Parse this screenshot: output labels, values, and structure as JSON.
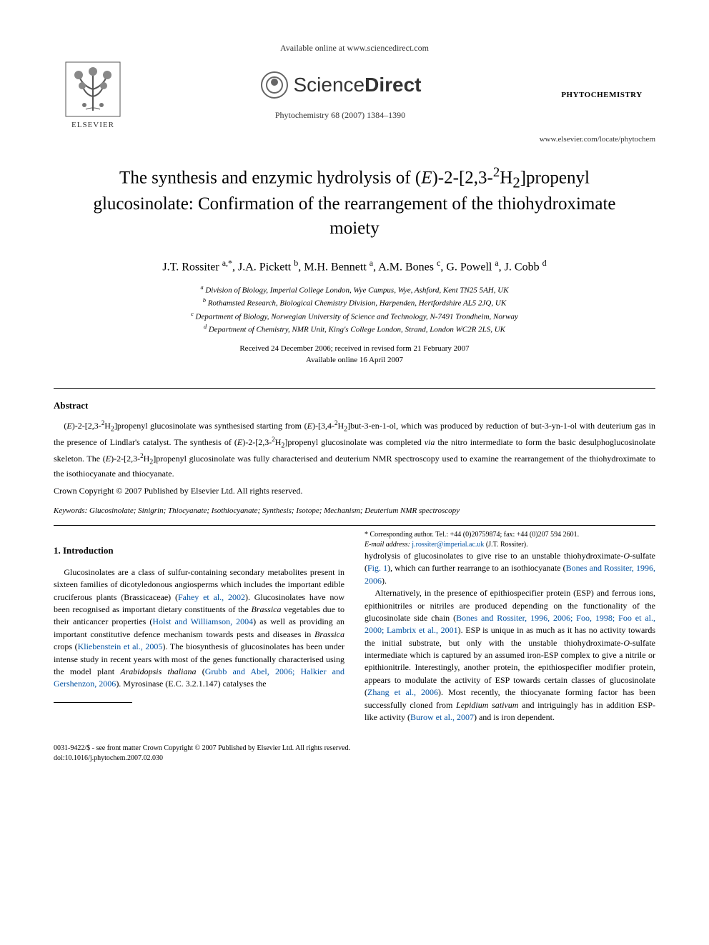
{
  "top_line": "Available online at www.sciencedirect.com",
  "sd_brand_left": "Science",
  "sd_brand_right": "Direct",
  "journal_ref": "Phytochemistry 68 (2007) 1384–1390",
  "journal_name_box": "PHYTOCHEMISTRY",
  "elsevier_label": "ELSEVIER",
  "url_line": "www.elsevier.com/locate/phytochem",
  "title_html": "The synthesis and enzymic hydrolysis of (<i>E</i>)-2-[2,3-<sup>2</sup>H<sub>2</sub>]propenyl glucosinolate: Confirmation of the rearrangement of the thiohydroximate moiety",
  "authors_html": "J.T. Rossiter <sup>a,*</sup>, J.A. Pickett <sup>b</sup>, M.H. Bennett <sup>a</sup>, A.M. Bones <sup>c</sup>, G. Powell <sup>a</sup>, J. Cobb <sup>d</sup>",
  "affils": [
    "<sup>a</sup> Division of Biology, Imperial College London, Wye Campus, Wye, Ashford, Kent TN25 5AH, UK",
    "<sup>b</sup> Rothamsted Research, Biological Chemistry Division, Harpenden, Hertfordshire AL5 2JQ, UK",
    "<sup>c</sup> Department of Biology, Norwegian University of Science and Technology, N-7491 Trondheim, Norway",
    "<sup>d</sup> Department of Chemistry, NMR Unit, King's College London, Strand, London WC2R 2LS, UK"
  ],
  "dates_line1": "Received 24 December 2006; received in revised form 21 February 2007",
  "dates_line2": "Available online 16 April 2007",
  "abstract_label": "Abstract",
  "abstract_html": "(<i>E</i>)-2-[2,3-<sup>2</sup>H<sub>2</sub>]propenyl glucosinolate was synthesised starting from (<i>E</i>)-[3,4-<sup>2</sup>H<sub>2</sub>]but-3-en-1-ol, which was produced by reduction of but-3-yn-1-ol with deuterium gas in the presence of Lindlar's catalyst. The synthesis of (<i>E</i>)-2-[2,3-<sup>2</sup>H<sub>2</sub>]propenyl glucosinolate was completed <i>via</i> the nitro intermediate to form the basic desulphoglucosinolate skeleton. The (<i>E</i>)-2-[2,3-<sup>2</sup>H<sub>2</sub>]propenyl glucosinolate was fully characterised and deuterium NMR spectroscopy used to examine the rearrangement of the thiohydroximate to the isothiocyanate and thiocyanate.",
  "copyright": "Crown Copyright © 2007 Published by Elsevier Ltd. All rights reserved.",
  "keywords_label": "Keywords:",
  "keywords_body": " Glucosinolate; Sinigrin; Thiocyanate; Isothiocyanate; Synthesis; Isotope; Mechanism; Deuterium NMR spectroscopy",
  "intro_head": "1. Introduction",
  "col_p1_html": "Glucosinolates are a class of sulfur-containing secondary metabolites present in sixteen families of dicotyledonous angiosperms which includes the important edible cruciferous plants (Brassicaceae) (<span class='blue'>Fahey et al., 2002</span>). Glucosinolates have now been recognised as important dietary constituents of the <i>Brassica</i> vegetables due to their anticancer properties (<span class='blue'>Holst and Williamson, 2004</span>) as well as providing an important constitutive defence mechanism towards pests and diseases in <i>Brassica</i> crops (<span class='blue'>Kliebenstein et al., 2005</span>). The biosynthesis of glucosinolates has been under intense study in recent years with most of the genes functionally characterised using the model plant <i>Arabidopsis thaliana</i> (<span class='blue'>Grubb and Abel, 2006; Halkier and Gershenzon, 2006</span>). Myrosinase (E.C. 3.2.1.147) catalyses the",
  "col_p2_html": "hydrolysis of glucosinolates to give rise to an unstable thiohydroximate-<i>O</i>-sulfate (<span class='blue'>Fig. 1</span>), which can further rearrange to an isothiocyanate (<span class='blue'>Bones and Rossiter, 1996, 2006</span>).",
  "col_p3_html": "Alternatively, in the presence of epithiospecifier protein (ESP) and ferrous ions, epithionitriles or nitriles are produced depending on the functionality of the glucosinolate side chain (<span class='blue'>Bones and Rossiter, 1996, 2006; Foo, 1998; Foo et al., 2000; Lambrix et al., 2001</span>). ESP is unique in as much as it has no activity towards the initial substrate, but only with the unstable thiohydroximate-<i>O</i>-sulfate intermediate which is captured by an assumed iron-ESP complex to give a nitrile or epithionitrile. Interestingly, another protein, the epithiospecifier modifier protein, appears to modulate the activity of ESP towards certain classes of glucosinolate (<span class='blue'>Zhang et al., 2006</span>). Most recently, the thiocyanate forming factor has been successfully cloned from <i>Lepidium sativum</i> and intriguingly has in addition ESP-like activity (<span class='blue'>Burow et al., 2007</span>) and is iron dependent.",
  "footnote_line1": "* Corresponding author. Tel.: +44 (0)20759874; fax: +44 (0)207 594 2601.",
  "footnote_email_label": "E-mail address:",
  "footnote_email": "j.rossiter@imperial.ac.uk",
  "footnote_email_suffix": " (J.T. Rossiter).",
  "bottom_line1": "0031-9422/$ - see front matter Crown Copyright © 2007 Published by Elsevier Ltd. All rights reserved.",
  "bottom_line2": "doi:10.1016/j.phytochem.2007.02.030",
  "colors": {
    "citation_blue": "#0050a0",
    "text_black": "#000000",
    "bg_white": "#ffffff"
  },
  "fontsize": {
    "title": 25,
    "authors": 16,
    "affil": 11,
    "body": 12,
    "footnote": 10
  }
}
